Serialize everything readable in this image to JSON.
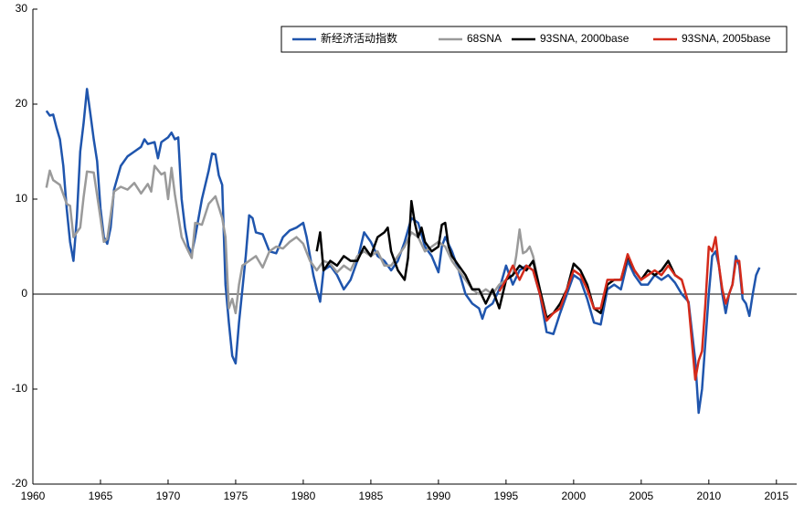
{
  "chart_data": {
    "type": "line",
    "xlim": [
      1960,
      2016.5
    ],
    "xticks": [
      1960,
      1965,
      1970,
      1975,
      1980,
      1985,
      1990,
      1995,
      2000,
      2005,
      2010,
      2015
    ],
    "ylim": [
      -20,
      30
    ],
    "yticks": [
      -20,
      -10,
      0,
      10,
      20,
      30
    ],
    "grid": false,
    "legend": "top-right",
    "series": [
      {
        "name": "新经济活动指数",
        "color": "#1f55ad",
        "x": [
          1961,
          1961.25,
          1961.5,
          1961.75,
          1962,
          1962.25,
          1962.5,
          1962.75,
          1963,
          1963.25,
          1963.5,
          1963.75,
          1964,
          1964.25,
          1964.5,
          1964.75,
          1965,
          1965.25,
          1965.5,
          1965.75,
          1966,
          1966.5,
          1967,
          1967.5,
          1968,
          1968.25,
          1968.5,
          1969,
          1969.25,
          1969.5,
          1970,
          1970.25,
          1970.5,
          1970.75,
          1971,
          1971.25,
          1971.5,
          1971.75,
          1972,
          1972.5,
          1973,
          1973.25,
          1973.5,
          1973.75,
          1974,
          1974.25,
          1974.5,
          1974.75,
          1975,
          1975.25,
          1975.5,
          1975.75,
          1976,
          1976.25,
          1976.5,
          1977,
          1977.5,
          1978,
          1978.5,
          1979,
          1979.5,
          1980,
          1980.25,
          1980.5,
          1980.75,
          1981,
          1981.25,
          1981.5,
          1982,
          1982.5,
          1983,
          1983.5,
          1984,
          1984.5,
          1985,
          1985.5,
          1986,
          1986.5,
          1987,
          1987.5,
          1988,
          1988.5,
          1989,
          1989.5,
          1990,
          1990.25,
          1990.5,
          1991,
          1991.5,
          1992,
          1992.5,
          1993,
          1993.25,
          1993.5,
          1994,
          1994.5,
          1995,
          1995.5,
          1996,
          1996.5,
          1997,
          1997.5,
          1998,
          1998.5,
          1999,
          1999.5,
          2000,
          2000.5,
          2001,
          2001.5,
          2002,
          2002.5,
          2003,
          2003.5,
          2004,
          2004.5,
          2005,
          2005.5,
          2006,
          2006.5,
          2007,
          2007.5,
          2008,
          2008.5,
          2009,
          2009.25,
          2009.5,
          2009.75,
          2010,
          2010.25,
          2010.5,
          2010.75,
          2011,
          2011.25,
          2011.5,
          2011.75,
          2012,
          2012.25,
          2012.5,
          2012.75,
          2013,
          2013.25,
          2013.5,
          2013.75
        ],
        "values": [
          19.3,
          18.8,
          18.9,
          17.5,
          16.3,
          13.5,
          9.0,
          5.5,
          3.5,
          8,
          15,
          18,
          21.6,
          19,
          16.3,
          14,
          9,
          6,
          5.3,
          7,
          11,
          13.5,
          14.5,
          15,
          15.5,
          16.3,
          15.8,
          16,
          14.3,
          16,
          16.5,
          17,
          16.3,
          16.5,
          10,
          7,
          5,
          4.3,
          6,
          10,
          13,
          14.8,
          14.7,
          12.5,
          11.5,
          1,
          -3,
          -6.5,
          -7.3,
          -3,
          0.5,
          4,
          8.3,
          8,
          6.5,
          6.3,
          4.5,
          4.3,
          6,
          6.7,
          7,
          7.5,
          6,
          4,
          2,
          0.5,
          -0.8,
          2.5,
          3,
          2,
          0.5,
          1.5,
          3.5,
          6.5,
          5.5,
          4,
          3.5,
          2.5,
          3.5,
          5.5,
          8,
          7.5,
          5,
          4,
          2.3,
          5,
          6,
          4.5,
          2.5,
          0,
          -1,
          -1.5,
          -2.6,
          -1.5,
          -1,
          0.5,
          3,
          1,
          2.5,
          3,
          2.5,
          0,
          -4,
          -4.2,
          -2,
          0,
          2,
          1.5,
          -0.5,
          -3,
          -3.2,
          0.5,
          1,
          0.5,
          3.5,
          2,
          1,
          1,
          2,
          1.5,
          2,
          1.2,
          0,
          -0.8,
          -7,
          -12.5,
          -10,
          -5,
          0,
          4,
          4.5,
          3,
          0,
          -2,
          0,
          1,
          4,
          3,
          -0.5,
          -1,
          -2.3,
          0,
          2,
          2.8
        ]
      },
      {
        "name": "68SNA",
        "color": "#9a9a9a",
        "x": [
          1961,
          1961.25,
          1961.5,
          1962,
          1962.5,
          1962.75,
          1963,
          1963.5,
          1963.75,
          1964,
          1964.5,
          1965,
          1965.25,
          1965.5,
          1966,
          1966.5,
          1967,
          1967.5,
          1968,
          1968.5,
          1968.75,
          1969,
          1969.5,
          1969.75,
          1970,
          1970.25,
          1970.5,
          1971,
          1971.5,
          1971.75,
          1972,
          1972.5,
          1973,
          1973.5,
          1974,
          1974.25,
          1974.5,
          1974.75,
          1975,
          1975.25,
          1975.5,
          1976,
          1976.5,
          1977,
          1977.5,
          1978,
          1978.5,
          1979,
          1979.5,
          1980,
          1980.5,
          1981,
          1981.5,
          1982,
          1982.5,
          1983,
          1983.5,
          1984,
          1984.5,
          1985,
          1985.5,
          1986,
          1986.5,
          1987,
          1987.5,
          1988,
          1988.5,
          1989,
          1989.5,
          1990,
          1990.5,
          1991,
          1991.5,
          1992,
          1992.5,
          1993,
          1993.5,
          1994,
          1994.5,
          1995,
          1995.5,
          1995.75,
          1996,
          1996.25,
          1996.5,
          1996.75,
          1997,
          1997.5,
          1998
        ],
        "values": [
          11.2,
          13,
          12,
          11.5,
          9.5,
          9.3,
          6,
          7,
          10.2,
          12.9,
          12.8,
          8,
          5.5,
          5.8,
          10.8,
          11.3,
          11,
          11.7,
          10.6,
          11.6,
          10.8,
          13.5,
          12.6,
          12.8,
          10,
          13.3,
          10.5,
          6,
          4.5,
          3.8,
          7.5,
          7.3,
          9.5,
          10.3,
          8,
          6,
          -1.5,
          -0.5,
          -2,
          1,
          3,
          3.5,
          4,
          2.8,
          4.5,
          5,
          4.8,
          5.5,
          6,
          5.3,
          3.5,
          2.5,
          3.5,
          3.2,
          2.3,
          3,
          2.5,
          4,
          4.5,
          4,
          4.5,
          3,
          3,
          4,
          5,
          6.5,
          6,
          4.5,
          5,
          5.5,
          5,
          3.5,
          2.5,
          1.5,
          0.5,
          0,
          0.5,
          0,
          1,
          1.5,
          2,
          4,
          6.8,
          4.3,
          4.5,
          5,
          4,
          0.5,
          -2.5
        ]
      },
      {
        "name": "93SNA, 2000base",
        "color": "#000000",
        "x": [
          1981,
          1981.25,
          1981.5,
          1982,
          1982.5,
          1983,
          1983.5,
          1984,
          1984.5,
          1985,
          1985.5,
          1986,
          1986.25,
          1986.5,
          1987,
          1987.5,
          1987.75,
          1988,
          1988.25,
          1988.5,
          1988.75,
          1989,
          1989.5,
          1990,
          1990.25,
          1990.5,
          1990.75,
          1991,
          1991.5,
          1992,
          1992.5,
          1993,
          1993.5,
          1994,
          1994.5,
          1995,
          1995.5,
          1996,
          1996.5,
          1997,
          1997.5,
          1998,
          1998.5,
          1999,
          1999.5,
          2000,
          2000.5,
          2001,
          2001.5,
          2002,
          2002.5,
          2003,
          2003.5,
          2004,
          2004.5,
          2005,
          2005.5,
          2006,
          2006.5,
          2007,
          2007.5,
          2008
        ],
        "values": [
          4.5,
          6.5,
          2.5,
          3.5,
          3,
          4,
          3.5,
          3.5,
          5,
          4,
          6,
          6.5,
          7,
          4.5,
          2.5,
          1.5,
          3.8,
          9.8,
          7.5,
          6,
          7,
          5.5,
          4.5,
          5,
          7.3,
          7.5,
          5,
          4,
          3,
          2,
          0.5,
          0.5,
          -1,
          0.5,
          -1.5,
          1.5,
          2,
          3,
          2.5,
          3.5,
          0.5,
          -2.5,
          -2,
          -1,
          0.5,
          3.2,
          2.5,
          1,
          -1.5,
          -2,
          1,
          1.5,
          1.5,
          4,
          2.5,
          1.5,
          2.5,
          2,
          2.5,
          3.5,
          2,
          1.5
        ]
      },
      {
        "name": "93SNA, 2005base",
        "color": "#d42a1a",
        "x": [
          1994.5,
          1995,
          1995.5,
          1996,
          1996.5,
          1997,
          1997.5,
          1998,
          1998.5,
          1999,
          1999.5,
          2000,
          2000.5,
          2001,
          2001.5,
          2002,
          2002.5,
          2003,
          2003.5,
          2004,
          2004.5,
          2005,
          2005.5,
          2006,
          2006.5,
          2007,
          2007.5,
          2008,
          2008.5,
          2009,
          2009.25,
          2009.5,
          2009.75,
          2010,
          2010.25,
          2010.5,
          2010.75,
          2011,
          2011.25,
          2011.5,
          2011.75,
          2012,
          2012.25,
          2012.5
        ],
        "values": [
          0.3,
          1.5,
          3,
          1.5,
          3,
          2.5,
          0,
          -2.8,
          -2,
          -1.5,
          0.5,
          2.5,
          2,
          0.5,
          -1.5,
          -1.5,
          1.5,
          1.5,
          1.5,
          4.2,
          2.5,
          1.5,
          2,
          2.5,
          2,
          3,
          2,
          1.5,
          -1,
          -9,
          -7,
          -6,
          -1,
          5,
          4.5,
          6,
          3,
          0.5,
          -1,
          0,
          1,
          3.5,
          3.5,
          0
        ]
      }
    ]
  }
}
